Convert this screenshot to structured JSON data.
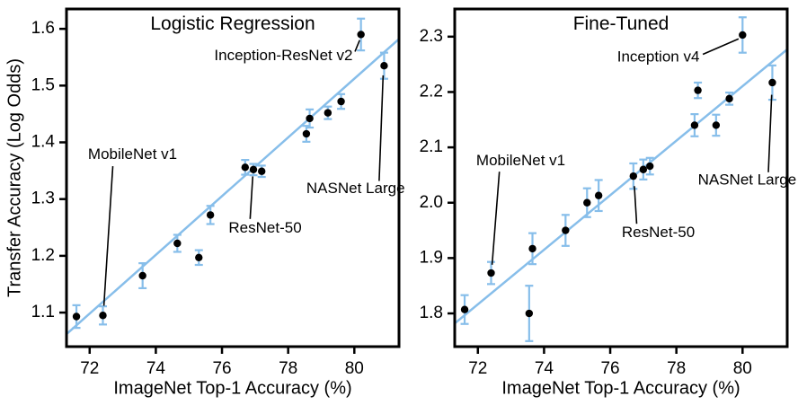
{
  "figure": {
    "ylabel": "Transfer Accuracy (Log Odds)",
    "xlabel": "ImageNet Top-1 Accuracy (%)"
  },
  "colors": {
    "accent": "#87beea",
    "point": "#000000",
    "text": "#000000"
  },
  "chart_data": [
    {
      "type": "scatter",
      "title": "Logistic Regression",
      "xlabel": "ImageNet Top-1 Accuracy (%)",
      "ylabel": "Transfer Accuracy (Log Odds)",
      "xlim": [
        71.3,
        81.35
      ],
      "ylim": [
        1.04,
        1.635
      ],
      "grid": false,
      "xticks": [
        [
          72,
          "72"
        ],
        [
          74,
          "74"
        ],
        [
          76,
          "76"
        ],
        [
          78,
          "78"
        ],
        [
          80,
          "80"
        ]
      ],
      "yticks": [
        [
          1.1,
          "1.1"
        ],
        [
          1.2,
          "1.2"
        ],
        [
          1.3,
          "1.3"
        ],
        [
          1.4,
          "1.4"
        ],
        [
          1.5,
          "1.5"
        ],
        [
          1.6,
          "1.6"
        ]
      ],
      "trend_line": [
        71.3,
        1.062,
        81.35,
        1.582
      ],
      "points": [
        {
          "x": 71.6,
          "y": 1.093,
          "err": 0.02
        },
        {
          "x": 72.4,
          "y": 1.095,
          "err": 0.016,
          "label": "MobileNet v1"
        },
        {
          "x": 73.6,
          "y": 1.165,
          "err": 0.022
        },
        {
          "x": 74.65,
          "y": 1.222,
          "err": 0.015
        },
        {
          "x": 75.3,
          "y": 1.197,
          "err": 0.013
        },
        {
          "x": 75.65,
          "y": 1.272,
          "err": 0.016
        },
        {
          "x": 76.7,
          "y": 1.356,
          "err": 0.013
        },
        {
          "x": 76.95,
          "y": 1.352,
          "err": 0.01,
          "label": "ResNet-50"
        },
        {
          "x": 77.2,
          "y": 1.349,
          "err": 0.01
        },
        {
          "x": 78.55,
          "y": 1.415,
          "err": 0.014
        },
        {
          "x": 78.65,
          "y": 1.442,
          "err": 0.016
        },
        {
          "x": 79.2,
          "y": 1.452,
          "err": 0.011
        },
        {
          "x": 79.6,
          "y": 1.472,
          "err": 0.013
        },
        {
          "x": 80.2,
          "y": 1.59,
          "err": 0.028,
          "label": "Inception-ResNet v2"
        },
        {
          "x": 80.9,
          "y": 1.535,
          "err": 0.023,
          "label": "NASNet Large"
        }
      ],
      "annotations": [
        {
          "text": "Inception-ResNet v2",
          "tx": 79.95,
          "ty": 1.552,
          "anchor": "end",
          "line": [
            80.02,
            1.56,
            80.16,
            1.58
          ]
        },
        {
          "text": "MobileNet v1",
          "tx": 71.95,
          "ty": 1.378,
          "anchor": "start",
          "line": [
            72.7,
            1.358,
            72.43,
            1.112
          ]
        },
        {
          "text": "NASNet Large",
          "tx": 78.55,
          "ty": 1.318,
          "anchor": "start",
          "line": [
            80.75,
            1.332,
            80.87,
            1.518
          ]
        },
        {
          "text": "ResNet-50",
          "tx": 76.2,
          "ty": 1.248,
          "anchor": "start",
          "line": [
            76.85,
            1.265,
            76.93,
            1.34
          ]
        }
      ]
    },
    {
      "type": "scatter",
      "title": "Fine-Tuned",
      "xlabel": "ImageNet Top-1 Accuracy (%)",
      "ylabel": "Transfer Accuracy (Log Odds)",
      "xlim": [
        71.3,
        81.35
      ],
      "ylim": [
        1.74,
        2.35
      ],
      "grid": false,
      "xticks": [
        [
          72,
          "72"
        ],
        [
          74,
          "74"
        ],
        [
          76,
          "76"
        ],
        [
          78,
          "78"
        ],
        [
          80,
          "80"
        ]
      ],
      "yticks": [
        [
          1.8,
          "1.8"
        ],
        [
          1.9,
          "1.9"
        ],
        [
          2.0,
          "2.0"
        ],
        [
          2.1,
          "2.1"
        ],
        [
          2.2,
          "2.2"
        ],
        [
          2.3,
          "2.3"
        ]
      ],
      "trend_line": [
        71.3,
        1.782,
        81.35,
        2.277
      ],
      "points": [
        {
          "x": 71.6,
          "y": 1.807,
          "err": 0.026
        },
        {
          "x": 72.4,
          "y": 1.873,
          "err": 0.02,
          "label": "MobileNet v1"
        },
        {
          "x": 73.55,
          "y": 1.8,
          "err": 0.05
        },
        {
          "x": 73.65,
          "y": 1.917,
          "err": 0.028
        },
        {
          "x": 74.65,
          "y": 1.95,
          "err": 0.028
        },
        {
          "x": 75.3,
          "y": 2.0,
          "err": 0.026
        },
        {
          "x": 75.65,
          "y": 2.013,
          "err": 0.028
        },
        {
          "x": 76.7,
          "y": 2.048,
          "err": 0.023,
          "label": "ResNet-50"
        },
        {
          "x": 77.0,
          "y": 2.06,
          "err": 0.018
        },
        {
          "x": 77.2,
          "y": 2.066,
          "err": 0.015
        },
        {
          "x": 78.55,
          "y": 2.14,
          "err": 0.02
        },
        {
          "x": 78.65,
          "y": 2.203,
          "err": 0.014
        },
        {
          "x": 79.2,
          "y": 2.14,
          "err": 0.019
        },
        {
          "x": 79.6,
          "y": 2.188,
          "err": 0.011
        },
        {
          "x": 80.0,
          "y": 2.303,
          "err": 0.032,
          "label": "Inception v4"
        },
        {
          "x": 80.9,
          "y": 2.217,
          "err": 0.031,
          "label": "NASNet Large"
        }
      ],
      "annotations": [
        {
          "text": "Inception v4",
          "tx": 78.7,
          "ty": 2.262,
          "anchor": "end",
          "line": [
            78.8,
            2.268,
            79.88,
            2.296
          ]
        },
        {
          "text": "MobileNet v1",
          "tx": 71.95,
          "ty": 2.075,
          "anchor": "start",
          "line": [
            72.65,
            2.056,
            72.43,
            1.888
          ]
        },
        {
          "text": "NASNet Large",
          "tx": 78.65,
          "ty": 2.04,
          "anchor": "start",
          "line": [
            80.78,
            2.055,
            80.88,
            2.195
          ]
        },
        {
          "text": "ResNet-50",
          "tx": 76.35,
          "ty": 1.945,
          "anchor": "start",
          "line": [
            76.8,
            1.962,
            76.73,
            2.03
          ]
        }
      ]
    }
  ]
}
